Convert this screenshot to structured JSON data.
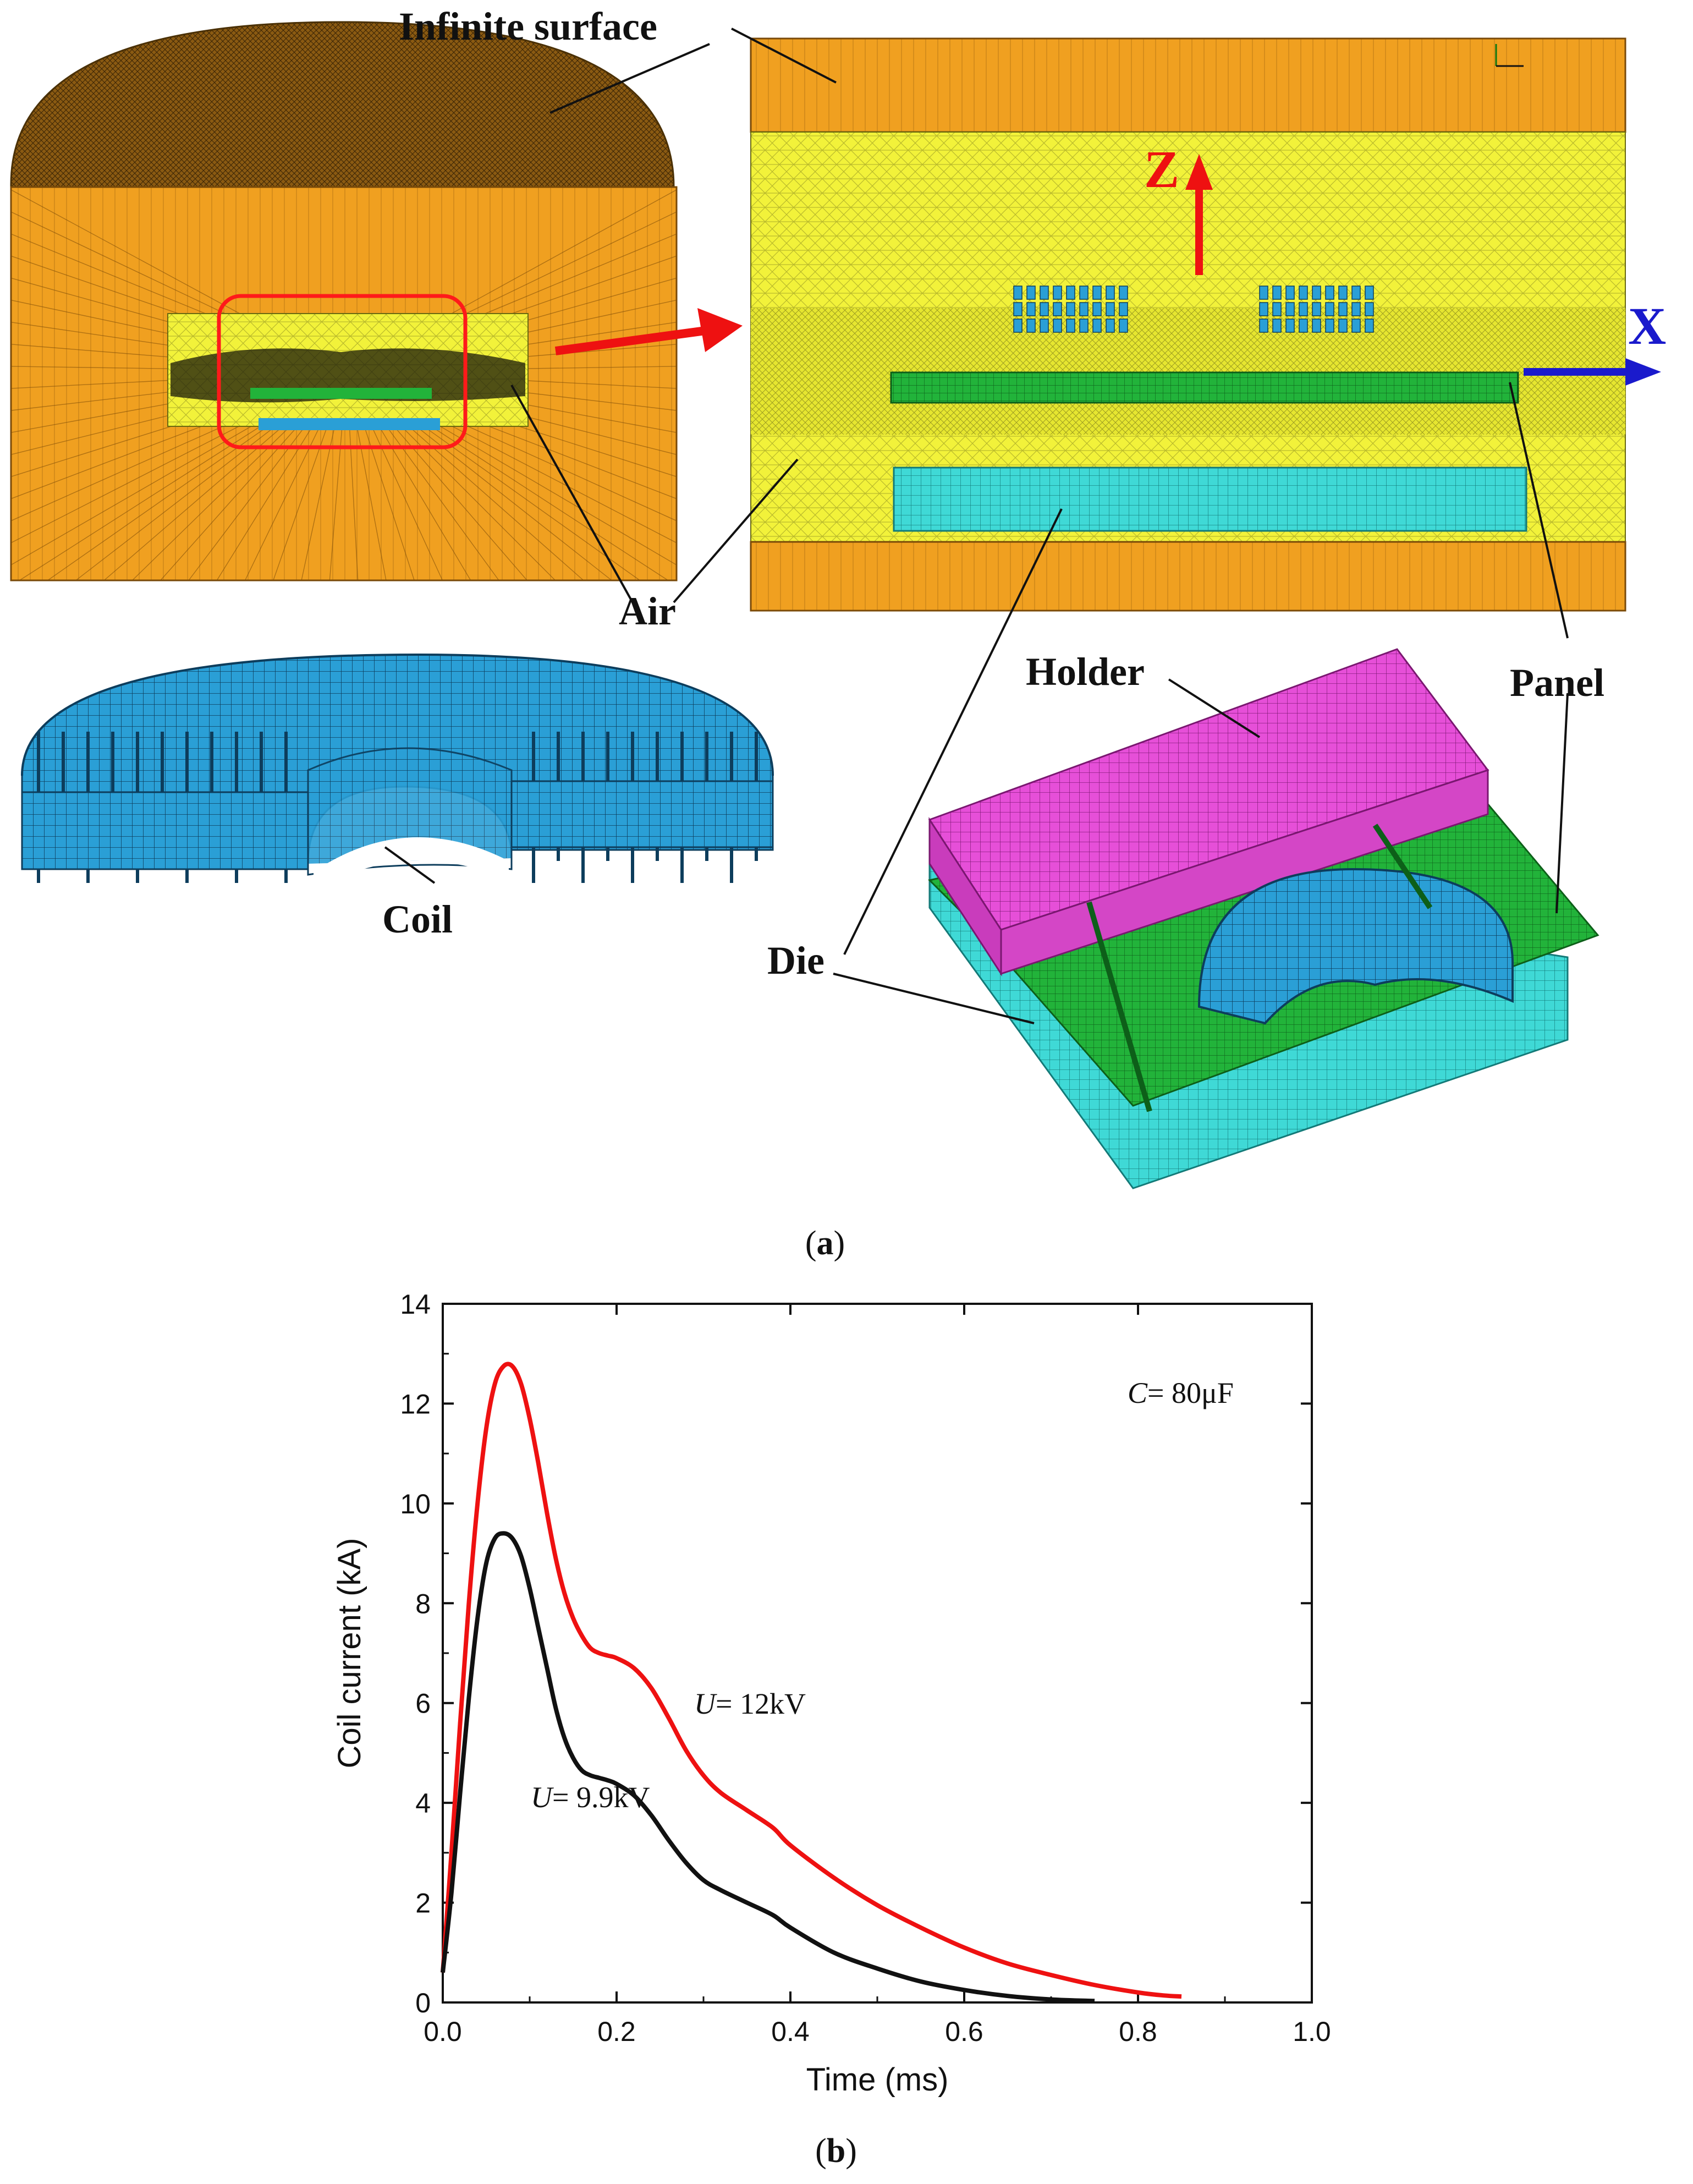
{
  "panel_a": {
    "caption_open": "(",
    "caption_letter": "a",
    "caption_close": ")",
    "labels": {
      "infinite_surface": "Infinite surface",
      "air": "Air",
      "coil": "Coil",
      "holder": "Holder",
      "panel": "Panel",
      "die": "Die",
      "axis_z": "Z",
      "axis_x": "X"
    },
    "colors": {
      "infinite_domain": "#f0a020",
      "air": "#f2f23a",
      "coil": "#2a9fd6",
      "coil_dark": "#1d5f8a",
      "panel": "#22b33a",
      "die": "#3fd9d6",
      "holder": "#e64fd8",
      "highlight": "#ff1a1a",
      "x_arrow": "#1a1acc",
      "z_arrow": "#ee1111"
    }
  },
  "panel_b": {
    "caption_open": "(",
    "caption_letter": "b",
    "caption_close": ")",
    "annotation_capacitance": "C= 80μF",
    "annotation_series_12": "U= 12kV",
    "annotation_series_99": "U= 9.9kV"
  },
  "chart_data": {
    "type": "line",
    "title": "",
    "xlabel": "Time (ms)",
    "ylabel": "Coil current (kA)",
    "xlim": [
      0,
      1.0
    ],
    "ylim": [
      0,
      14
    ],
    "xticks": [
      "0.0",
      "0.2",
      "0.4",
      "0.6",
      "0.8",
      "1.0"
    ],
    "yticks": [
      "0",
      "2",
      "4",
      "6",
      "8",
      "10",
      "12",
      "14"
    ],
    "grid": false,
    "series": [
      {
        "name": "U= 12kV",
        "color": "#ee1111",
        "x": [
          0,
          0.01,
          0.02,
          0.03,
          0.04,
          0.05,
          0.06,
          0.07,
          0.08,
          0.09,
          0.1,
          0.11,
          0.12,
          0.13,
          0.14,
          0.15,
          0.16,
          0.17,
          0.18,
          0.19,
          0.2,
          0.22,
          0.24,
          0.26,
          0.28,
          0.3,
          0.32,
          0.35,
          0.38,
          0.4,
          0.45,
          0.5,
          0.55,
          0.6,
          0.65,
          0.7,
          0.75,
          0.8,
          0.83,
          0.85
        ],
        "y": [
          0.6,
          3.0,
          5.6,
          8.0,
          10.0,
          11.5,
          12.4,
          12.75,
          12.75,
          12.4,
          11.7,
          10.8,
          9.8,
          8.9,
          8.2,
          7.7,
          7.35,
          7.1,
          7.0,
          6.95,
          6.9,
          6.7,
          6.3,
          5.7,
          5.05,
          4.55,
          4.2,
          3.85,
          3.5,
          3.15,
          2.5,
          1.95,
          1.5,
          1.1,
          0.78,
          0.55,
          0.35,
          0.2,
          0.14,
          0.12
        ]
      },
      {
        "name": "U= 9.9kV",
        "color": "#111111",
        "x": [
          0,
          0.01,
          0.02,
          0.03,
          0.04,
          0.05,
          0.06,
          0.07,
          0.08,
          0.09,
          0.1,
          0.11,
          0.12,
          0.13,
          0.14,
          0.15,
          0.16,
          0.17,
          0.18,
          0.19,
          0.2,
          0.22,
          0.24,
          0.26,
          0.28,
          0.3,
          0.32,
          0.35,
          0.38,
          0.4,
          0.45,
          0.5,
          0.55,
          0.6,
          0.65,
          0.7,
          0.75
        ],
        "y": [
          0.6,
          2.2,
          4.2,
          6.1,
          7.7,
          8.8,
          9.3,
          9.4,
          9.3,
          8.95,
          8.3,
          7.5,
          6.7,
          5.9,
          5.3,
          4.9,
          4.65,
          4.55,
          4.5,
          4.45,
          4.38,
          4.15,
          3.75,
          3.25,
          2.8,
          2.45,
          2.25,
          2.0,
          1.75,
          1.5,
          1.0,
          0.68,
          0.42,
          0.25,
          0.13,
          0.06,
          0.03
        ]
      }
    ]
  }
}
